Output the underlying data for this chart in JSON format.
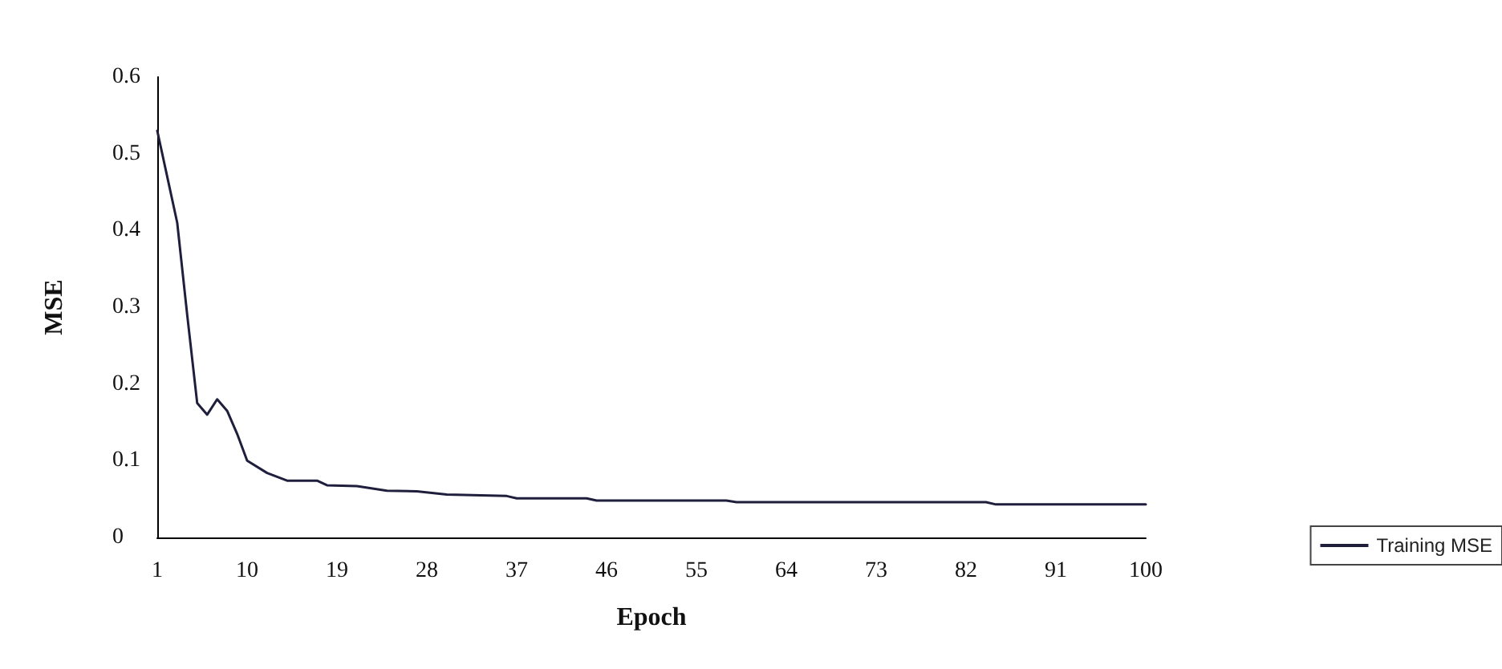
{
  "chart_data": {
    "type": "line",
    "xlabel": "Epoch",
    "ylabel": "MSE",
    "x": [
      1,
      2,
      3,
      4,
      5,
      6,
      7,
      8,
      9,
      10,
      12,
      14,
      17,
      18,
      21,
      24,
      27,
      30,
      36,
      37,
      44,
      45,
      58,
      59,
      84,
      85,
      100
    ],
    "series": [
      {
        "name": "Training MSE",
        "color": "#1f1f3d",
        "values": [
          0.53,
          0.47,
          0.41,
          0.29,
          0.175,
          0.16,
          0.18,
          0.165,
          0.135,
          0.1,
          0.084,
          0.074,
          0.074,
          0.068,
          0.067,
          0.061,
          0.06,
          0.056,
          0.054,
          0.051,
          0.051,
          0.048,
          0.048,
          0.046,
          0.046,
          0.043,
          0.043
        ]
      }
    ],
    "xlim": [
      1,
      100
    ],
    "xticks": [
      1,
      10,
      19,
      28,
      37,
      46,
      55,
      64,
      73,
      82,
      91,
      100
    ],
    "ylim": [
      0,
      0.6
    ],
    "yticks": [
      0,
      0.1,
      0.2,
      0.3,
      0.4,
      0.5,
      0.6
    ],
    "grid": false,
    "legend": "bottom right",
    "marker": "none",
    "line_style": "solid"
  }
}
